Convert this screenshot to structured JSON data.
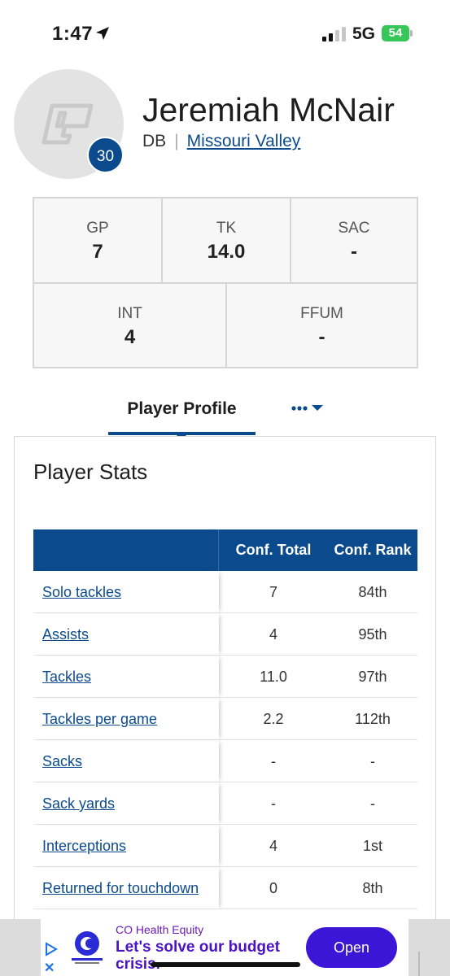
{
  "status_bar": {
    "time": "1:47",
    "network": "5G",
    "battery": "54"
  },
  "player": {
    "name": "Jeremiah McNair",
    "position": "DB",
    "team": "Missouri Valley",
    "number": "30"
  },
  "summary": [
    {
      "label": "GP",
      "value": "7"
    },
    {
      "label": "TK",
      "value": "14.0"
    },
    {
      "label": "SAC",
      "value": "-"
    },
    {
      "label": "INT",
      "value": "4"
    },
    {
      "label": "FFUM",
      "value": "-"
    }
  ],
  "tabs": {
    "active": "Player Profile",
    "more": "•••"
  },
  "stats": {
    "title": "Player Stats",
    "headers": {
      "stat": "",
      "total": "Conf. Total",
      "rank": "Conf. Rank"
    },
    "rows": [
      {
        "stat": "Solo tackles",
        "total": "7",
        "rank": "84th"
      },
      {
        "stat": "Assists",
        "total": "4",
        "rank": "95th"
      },
      {
        "stat": "Tackles",
        "total": "11.0",
        "rank": "97th"
      },
      {
        "stat": "Tackles per game",
        "total": "2.2",
        "rank": "112th"
      },
      {
        "stat": "Sacks",
        "total": "-",
        "rank": "-"
      },
      {
        "stat": "Sack yards",
        "total": "-",
        "rank": "-"
      },
      {
        "stat": "Interceptions",
        "total": "4",
        "rank": "1st"
      },
      {
        "stat": "Returned for touchdown",
        "total": "0",
        "rank": "8th"
      }
    ]
  },
  "ad": {
    "sponsor": "CO Health Equity",
    "headline": "Let's solve our budget crisis.",
    "cta": "Open",
    "close": "✕"
  },
  "colors": {
    "brand": "#0c4a8e",
    "ad_button": "#3b16d6",
    "battery": "#37c759"
  }
}
